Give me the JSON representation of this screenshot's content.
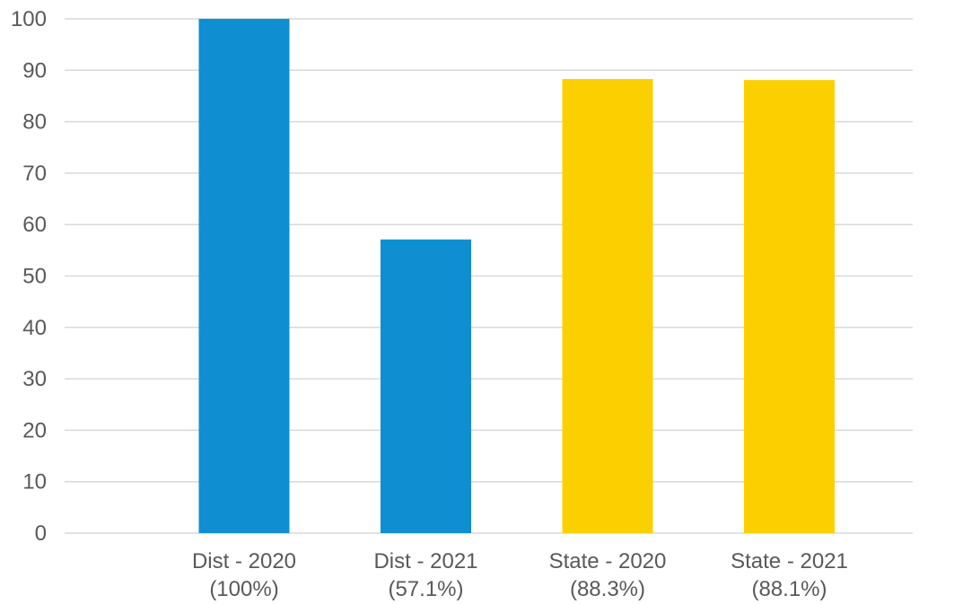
{
  "chart_data": {
    "type": "bar",
    "title": "",
    "xlabel": "",
    "ylabel": "",
    "ylim": [
      0,
      100
    ],
    "yticks": [
      0,
      10,
      20,
      30,
      40,
      50,
      60,
      70,
      80,
      90,
      100
    ],
    "grid": true,
    "legend": "none",
    "categories": [
      {
        "line1": "Dist - 2020",
        "line2": "(100%)",
        "value": 100,
        "color": "#0F8FD1"
      },
      {
        "line1": "Dist - 2021",
        "line2": "(57.1%)",
        "value": 57.1,
        "color": "#0F8FD1"
      },
      {
        "line1": "State - 2020",
        "line2": "(88.3%)",
        "value": 88.3,
        "color": "#FCD000"
      },
      {
        "line1": "State - 2021",
        "line2": "(88.1%)",
        "value": 88.1,
        "color": "#FCD000"
      }
    ]
  }
}
